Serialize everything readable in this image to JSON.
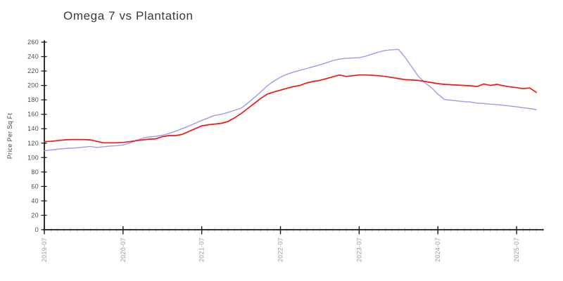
{
  "title": "Omega 7 vs Plantation",
  "colors": {
    "series_red": "#f21617",
    "series_blue": "#9b9bee",
    "axis": "#1a1a1a",
    "major_tick": "#1a1a1a",
    "minor_tick": "#c9c9c9",
    "x_tick_label": "#9a9a9a",
    "y_tick_label": "#4a4a4a",
    "title_text": "#3a3a3a",
    "background": "#ffffff"
  },
  "chart_data": {
    "type": "line",
    "title": "Omega 7 vs Plantation",
    "xlabel": "",
    "ylabel": "Price Per Sq Ft",
    "ylim": [
      0,
      260
    ],
    "y_ticks": [
      0,
      20,
      40,
      60,
      80,
      100,
      120,
      140,
      160,
      180,
      200,
      220,
      240,
      260
    ],
    "x_tick_labels": [
      "2019-07",
      "2020-07",
      "2021-07",
      "2022-07",
      "2023-07",
      "2024-07",
      "2025-07"
    ],
    "x_tick_month_indices": [
      0,
      12,
      24,
      36,
      48,
      60,
      72
    ],
    "x_minor_tick_unit": "month",
    "grid": false,
    "legend": "none",
    "x": [
      "2019-07",
      "2019-08",
      "2019-09",
      "2019-10",
      "2019-11",
      "2019-12",
      "2020-01",
      "2020-02",
      "2020-03",
      "2020-04",
      "2020-05",
      "2020-06",
      "2020-07",
      "2020-08",
      "2020-09",
      "2020-10",
      "2020-11",
      "2020-12",
      "2021-01",
      "2021-02",
      "2021-03",
      "2021-04",
      "2021-05",
      "2021-06",
      "2021-07",
      "2021-08",
      "2021-09",
      "2021-10",
      "2021-11",
      "2021-12",
      "2022-01",
      "2022-02",
      "2022-03",
      "2022-04",
      "2022-05",
      "2022-06",
      "2022-07",
      "2022-08",
      "2022-09",
      "2022-10",
      "2022-11",
      "2022-12",
      "2023-01",
      "2023-02",
      "2023-03",
      "2023-04",
      "2023-05",
      "2023-06",
      "2023-07",
      "2023-08",
      "2023-09",
      "2023-10",
      "2023-11",
      "2023-12",
      "2024-01",
      "2024-02",
      "2024-03",
      "2024-04",
      "2024-05",
      "2024-06",
      "2024-07",
      "2024-08",
      "2024-09",
      "2024-10",
      "2024-11",
      "2024-12",
      "2025-01",
      "2025-02",
      "2025-03",
      "2025-04",
      "2025-05",
      "2025-06",
      "2025-07",
      "2025-08",
      "2025-09",
      "2025-10"
    ],
    "series": [
      {
        "name": "Omega 7",
        "color": "#f21617",
        "values": [
          122,
          122.5,
          123.5,
          124.5,
          125,
          125,
          125,
          124.5,
          122.5,
          120.5,
          120.5,
          120.5,
          121,
          122,
          123.5,
          124.5,
          125.5,
          126,
          129,
          130.5,
          130.5,
          132,
          136,
          140,
          144,
          145.5,
          146.5,
          147.5,
          150,
          155,
          161,
          168,
          175,
          182,
          188,
          191,
          193.5,
          196,
          198.5,
          200,
          203.5,
          205.5,
          207,
          209.5,
          212,
          214.5,
          212.5,
          213.5,
          214.5,
          214.5,
          214,
          213.5,
          212.5,
          211,
          209.5,
          208,
          207.5,
          207,
          205.5,
          204,
          202.5,
          201.5,
          201,
          200.5,
          200,
          199.5,
          198.5,
          202,
          200,
          201.5,
          199.5,
          198,
          197,
          195.5,
          196.5,
          190.5
        ]
      },
      {
        "name": "Plantation",
        "color": "#9b9bee",
        "values": [
          109.5,
          110.5,
          111.5,
          112.5,
          113,
          113.5,
          114.5,
          115.5,
          114,
          115,
          116,
          116.5,
          117.5,
          120,
          123.5,
          127,
          128.5,
          129.5,
          131,
          133.5,
          136.5,
          140,
          143.5,
          147.5,
          151.5,
          155,
          158.5,
          160,
          162.5,
          165.5,
          168.5,
          175.5,
          183,
          191,
          199.5,
          206,
          211.5,
          215.5,
          218.5,
          221,
          223.5,
          226,
          228.5,
          231.5,
          234.5,
          236.5,
          237.5,
          238,
          238.5,
          240.5,
          243.5,
          246.5,
          248.5,
          249.5,
          250,
          239,
          226,
          213,
          204,
          197,
          188,
          180.5,
          179.5,
          178.5,
          177.5,
          177,
          175.5,
          175,
          174,
          173.5,
          172.5,
          171.5,
          170.5,
          169,
          168,
          166.5
        ]
      }
    ]
  }
}
